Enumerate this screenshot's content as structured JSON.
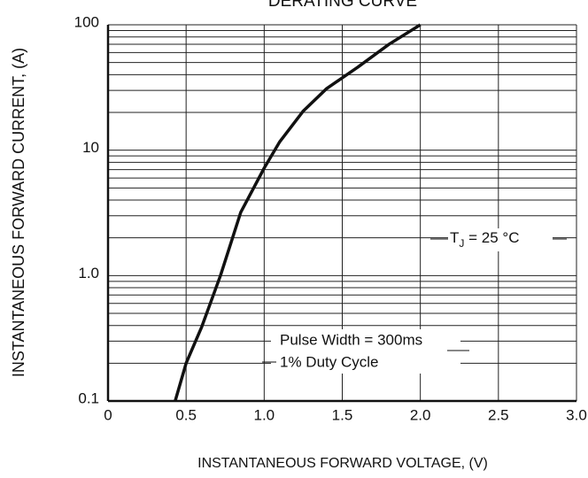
{
  "chart_data": {
    "type": "line",
    "title": "DERATING CURVE",
    "x_label": "INSTANTANEOUS FORWARD VOLTAGE, (V)",
    "y_label": "INSTANTANEOUS FORWARD CURRENT, (A)",
    "x": [
      0.43,
      0.5,
      0.6,
      0.72,
      0.85,
      1.0,
      1.1,
      1.25,
      1.4,
      1.6,
      1.8,
      2.0
    ],
    "series": [
      {
        "color": "#111111",
        "values": [
          0.1,
          0.2,
          0.39,
          1.0,
          3.2,
          7.2,
          11.7,
          20.5,
          31,
          46,
          70,
          100
        ]
      }
    ],
    "xlim": [
      0,
      3.0
    ],
    "ylim": [
      0.1,
      100
    ],
    "y_log": true,
    "xticks": [
      0,
      0.5,
      {
        "value": 1.0,
        "label": "1.0"
      },
      1.5,
      {
        "value": 2.0,
        "label": "2.0"
      },
      2.5,
      {
        "value": 3.0,
        "label": "3.0"
      }
    ],
    "yticks": [
      0.1,
      {
        "value": 1.0,
        "label": "1.0"
      },
      10,
      100
    ],
    "grid": true,
    "minor_grid": true,
    "annotations": [
      {
        "text": "T",
        "subscript": "J",
        "suffix": " = 25 °C"
      },
      {
        "text": "Pulse Width = 300ms"
      },
      {
        "text": "1% Duty Cycle"
      }
    ]
  }
}
